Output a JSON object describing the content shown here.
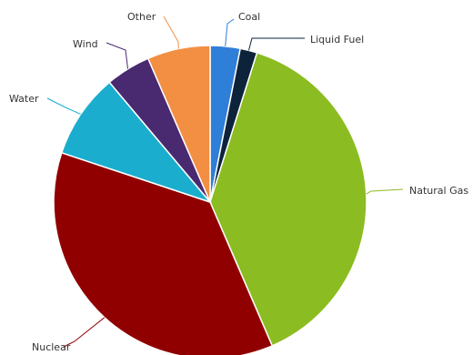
{
  "chart_data": {
    "type": "pie",
    "title": "",
    "start_angle_deg": 0,
    "slices": [
      {
        "name": "Coal",
        "value": 3.0,
        "color": "#2f7ed8"
      },
      {
        "name": "Liquid Fuel",
        "value": 1.7,
        "color": "#0d233a"
      },
      {
        "name": "Natural Gas",
        "value": 37.5,
        "color": "#8bbc21"
      },
      {
        "name": "Nuclear",
        "value": 35.5,
        "color": "#910000"
      },
      {
        "name": "Water",
        "value": 8.5,
        "color": "#1aadce"
      },
      {
        "name": "Wind",
        "value": 4.5,
        "color": "#492970"
      },
      {
        "name": "Other",
        "value": 6.3,
        "color": "#f28f43"
      }
    ]
  }
}
